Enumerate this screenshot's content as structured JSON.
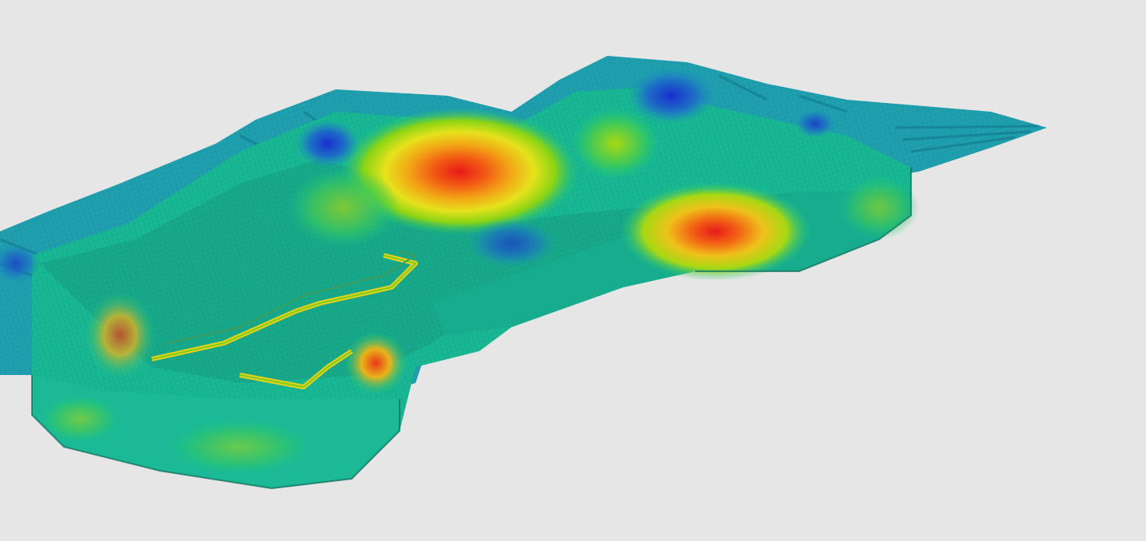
{
  "viewport": {
    "background": "#e6e6e6"
  },
  "model": {
    "subject": "sheet-metal-pan-forming-simulation",
    "colormap": [
      "#1a2fd0",
      "#1d8fc4",
      "#17c9a8",
      "#1ec97a",
      "#8bd414",
      "#e8e21c",
      "#f29a16",
      "#e81a1a"
    ],
    "base_color": "#19b894"
  }
}
